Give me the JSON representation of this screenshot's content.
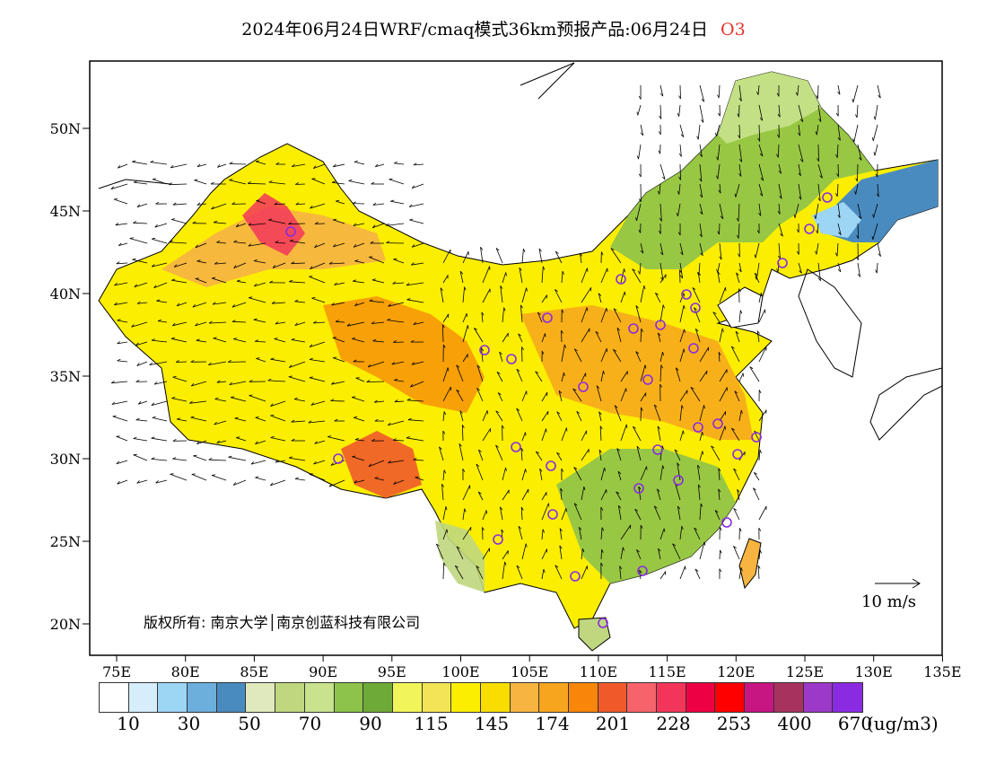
{
  "title": {
    "main": "2024年06月24日WRF/cmaq模式36km预报产品:06月24日",
    "variable": "O3"
  },
  "axes": {
    "lat_ticks": [
      "50N",
      "45N",
      "40N",
      "35N",
      "30N",
      "25N",
      "20N"
    ],
    "lon_ticks": [
      "75E",
      "80E",
      "85E",
      "90E",
      "95E",
      "100E",
      "105E",
      "110E",
      "115E",
      "120E",
      "125E",
      "130E",
      "135E"
    ]
  },
  "colorbar": {
    "colors": [
      "#ffffff",
      "#d6eefb",
      "#9dd5f5",
      "#6caedc",
      "#4a8bbf",
      "#dfe9bd",
      "#bfd77e",
      "#c8e28d",
      "#8dc24b",
      "#6eaa37",
      "#f1f55a",
      "#f2e456",
      "#fbee00",
      "#f9dd00",
      "#f7b441",
      "#f7a51f",
      "#f7860a",
      "#f05a2b",
      "#f7636a",
      "#f3355a",
      "#ee0044",
      "#ff0000",
      "#c71581",
      "#a8325e",
      "#9c39c9",
      "#8a2be2"
    ],
    "labels": [
      "10",
      "30",
      "50",
      "70",
      "90",
      "115",
      "145",
      "174",
      "201",
      "228",
      "253",
      "400",
      "670"
    ],
    "unit": "(ug/m3)"
  },
  "copyright": "版权所有: 南京大学│南京创蓝科技有限公司",
  "wind_scale": {
    "label": "10 m/s"
  }
}
